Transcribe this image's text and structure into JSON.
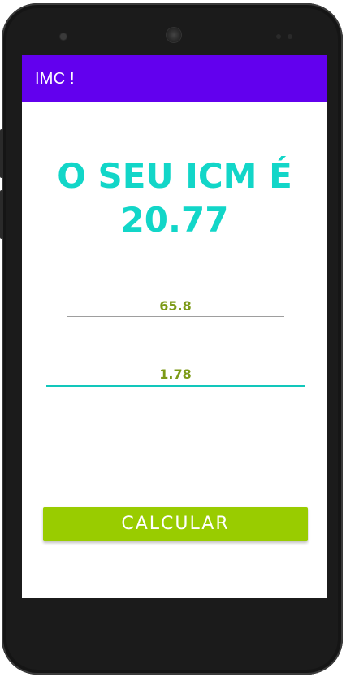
{
  "appbar": {
    "title": "IMC !",
    "color": "#6200ee"
  },
  "result": {
    "line1": "O SEU ICM É",
    "line2": "20.77",
    "color": "#12d6c8"
  },
  "inputs": {
    "weight": {
      "value": "65.8"
    },
    "height": {
      "value": "1.78"
    },
    "text_color": "#7c9a17",
    "focus_color": "#12c7bb"
  },
  "actions": {
    "calculate_label": "CALCULAR",
    "button_color": "#99cc00"
  },
  "device": {
    "icons": [
      "front-camera-icon",
      "earpiece-icon",
      "sensor-icon"
    ]
  }
}
